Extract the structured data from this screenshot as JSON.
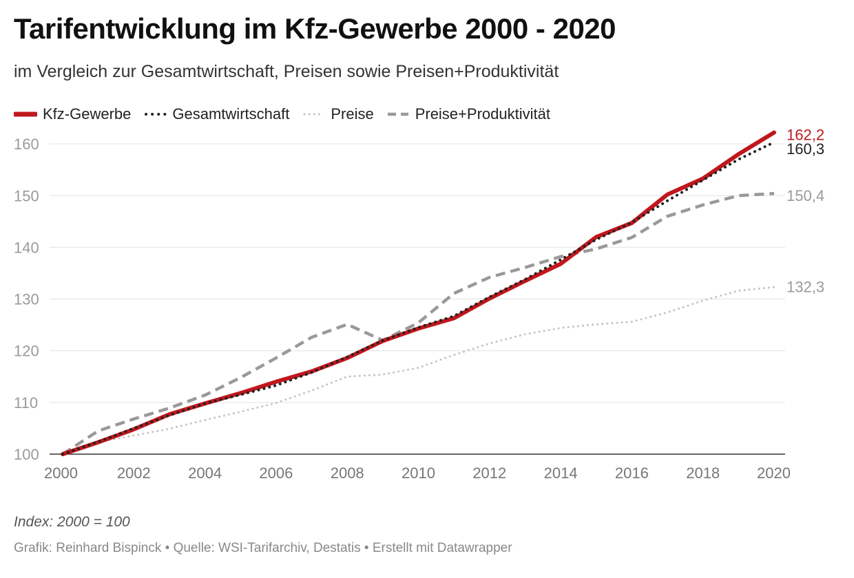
{
  "header": {
    "title": "Tarifentwicklung im Kfz-Gewerbe 2000 - 2020",
    "subtitle": "im Vergleich zur Gesamtwirtschaft, Preisen sowie Preisen+Produktivität"
  },
  "footer": {
    "note": "Index: 2000 = 100",
    "credit": "Grafik: Reinhard Bispinck • Quelle: WSI-Tarifarchiv, Destatis • Erstellt mit Datawrapper"
  },
  "chart_data": {
    "type": "line",
    "title": "Tarifentwicklung im Kfz-Gewerbe 2000 - 2020",
    "subtitle": "im Vergleich zur Gesamtwirtschaft, Preisen sowie Preisen+Produktivität",
    "xlabel": "",
    "ylabel": "",
    "x": [
      2000,
      2001,
      2002,
      2003,
      2004,
      2005,
      2006,
      2007,
      2008,
      2009,
      2010,
      2011,
      2012,
      2013,
      2014,
      2015,
      2016,
      2017,
      2018,
      2019,
      2020
    ],
    "xticks": [
      "2000",
      "2002",
      "2004",
      "2006",
      "2008",
      "2010",
      "2012",
      "2014",
      "2016",
      "2018",
      "2020"
    ],
    "yticks": [
      "100",
      "110",
      "120",
      "130",
      "140",
      "150",
      "160"
    ],
    "ylim": [
      100,
      162.2
    ],
    "xlim": [
      2000,
      2020
    ],
    "grid": "horizontal",
    "legend_position": "top-left",
    "series": [
      {
        "name": "Kfz-Gewerbe",
        "color": "#c0171d",
        "style": "solid",
        "values": [
          100,
          102.3,
          104.8,
          107.7,
          109.8,
          111.8,
          114.0,
          116.0,
          118.6,
          121.9,
          124.3,
          126.3,
          130.1,
          133.5,
          136.8,
          142.0,
          144.7,
          150.2,
          153.3,
          158.0,
          162.2
        ],
        "end_label": "162,2"
      },
      {
        "name": "Gesamtwirtschaft",
        "color": "#222222",
        "style": "dotted",
        "values": [
          100,
          102.4,
          105.0,
          107.5,
          109.8,
          111.5,
          113.3,
          115.8,
          118.8,
          122.0,
          124.5,
          126.7,
          130.4,
          133.8,
          137.6,
          141.5,
          144.8,
          149.0,
          153.0,
          157.0,
          160.3
        ],
        "end_label": "160,3"
      },
      {
        "name": "Preise",
        "color": "#c4c4c4",
        "style": "dotted",
        "values": [
          100,
          102.3,
          103.6,
          104.9,
          106.6,
          108.2,
          109.9,
          112.3,
          115.0,
          115.4,
          116.7,
          119.2,
          121.4,
          123.2,
          124.4,
          125.1,
          125.6,
          127.4,
          129.7,
          131.6,
          132.3
        ],
        "end_label": "132,3"
      },
      {
        "name": "Preise+Produktivität",
        "color": "#999999",
        "style": "dashed",
        "values": [
          100,
          104.5,
          106.8,
          108.9,
          111.4,
          114.8,
          118.6,
          122.6,
          125.1,
          122.0,
          125.4,
          131.1,
          134.2,
          136.1,
          138.2,
          139.7,
          141.9,
          146.0,
          148.2,
          150.0,
          150.4
        ],
        "end_label": "150,4"
      }
    ]
  }
}
